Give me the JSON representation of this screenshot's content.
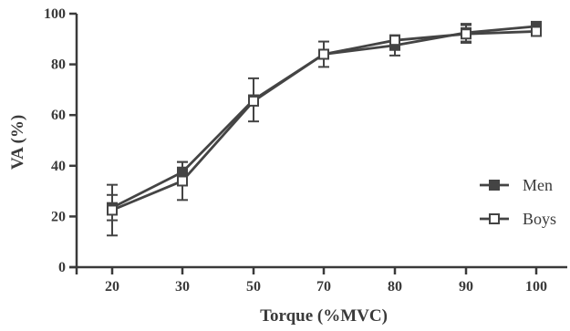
{
  "chart_data": {
    "type": "line",
    "title": "",
    "xlabel": "Torque (%MVC)",
    "ylabel": "VA (%)",
    "categories": [
      "20",
      "30",
      "50",
      "70",
      "80",
      "90",
      "100"
    ],
    "ylim": [
      0,
      100
    ],
    "yticks": [
      "0",
      "20",
      "40",
      "60",
      "80",
      "100"
    ],
    "grid": false,
    "legend_position": "right",
    "series": [
      {
        "name": "Men",
        "marker": "filled-square",
        "color": "#444444",
        "values": [
          23.5,
          37.5,
          66,
          84,
          87.5,
          92.5,
          95
        ],
        "error_bars": [
          5,
          4,
          8.5,
          5,
          4,
          3.5,
          0
        ]
      },
      {
        "name": "Boys",
        "marker": "open-square",
        "color": "#444444",
        "values": [
          22.5,
          34,
          65.5,
          84,
          89.5,
          92,
          93
        ],
        "error_bars": [
          10,
          7.5,
          0,
          0,
          0,
          3.5,
          0
        ]
      }
    ]
  }
}
